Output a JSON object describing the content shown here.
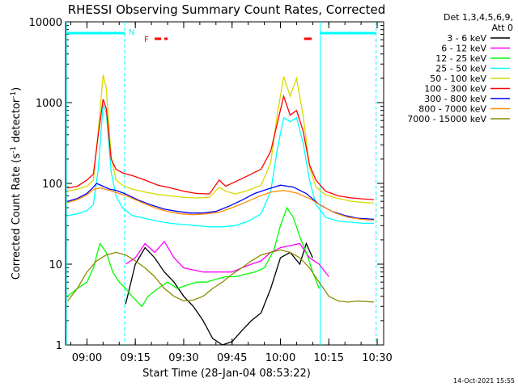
{
  "chart_data": {
    "type": "line",
    "title": "RHESSI Observing Summary Count Rates, Corrected",
    "xlabel": "Start Time (28-Jan-04 08:53:22)",
    "ylabel": "Corrected Count Rate (s⁻¹ detector⁻¹)",
    "ylabel_main": "Corrected Count Rate (s",
    "ylabel_sup1": "-1",
    "ylabel_mid": " detector",
    "ylabel_sup2": "-1",
    "ylabel_end": ")",
    "y_scale": "log",
    "ylim": [
      1,
      10000
    ],
    "xlim": [
      "08:53:22",
      "10:32:00"
    ],
    "x_ticks": [
      "09:00",
      "09:15",
      "09:30",
      "09:45",
      "10:00",
      "10:15",
      "10:30"
    ],
    "y_ticks": [
      "1",
      "10",
      "100",
      "1000",
      "10000"
    ],
    "legend_header": [
      "Det 1,3,4,5,6,9,",
      "Att 0"
    ],
    "legend_position": "right",
    "footer_date": "14-Oct-2021 15:55",
    "annotations": {
      "night_label": "N",
      "flare_label": "F",
      "night_intervals": [
        [
          "08:53:22",
          "09:11:40"
        ],
        [
          "10:12:20",
          "10:29:40"
        ]
      ],
      "flare_intervals": [
        [
          "09:21:00",
          "09:25:00"
        ],
        [
          "10:07:20",
          "10:09:40"
        ]
      ],
      "vertical_markers": [
        "09:11:40",
        "10:12:20",
        "10:29:40"
      ],
      "night_color": "#00ffff",
      "flare_color": "#ff0000"
    },
    "series": [
      {
        "name": "3 - 6 keV",
        "color": "#000000",
        "points": [
          [
            "09:12:00",
            3.2
          ],
          [
            "09:15:00",
            10
          ],
          [
            "09:18:00",
            16
          ],
          [
            "09:21:00",
            12
          ],
          [
            "09:24:00",
            8
          ],
          [
            "09:27:00",
            6
          ],
          [
            "09:30:00",
            4
          ],
          [
            "09:33:00",
            3
          ],
          [
            "09:36:00",
            2
          ],
          [
            "09:39:00",
            1.2
          ],
          [
            "09:42:00",
            1
          ],
          [
            "09:45:00",
            1.1
          ],
          [
            "09:48:00",
            1.5
          ],
          [
            "09:51:00",
            2
          ],
          [
            "09:54:00",
            2.5
          ],
          [
            "09:57:00",
            5
          ],
          [
            "10:00:00",
            12
          ],
          [
            "10:03:00",
            14
          ],
          [
            "10:06:00",
            10
          ],
          [
            "10:08:00",
            18
          ],
          [
            "10:10:00",
            12
          ]
        ]
      },
      {
        "name": "6 - 12 keV",
        "color": "#ff00ff",
        "points": [
          [
            "09:12:00",
            10
          ],
          [
            "09:15:00",
            12
          ],
          [
            "09:18:00",
            18
          ],
          [
            "09:21:00",
            14
          ],
          [
            "09:24:00",
            19
          ],
          [
            "09:27:00",
            12
          ],
          [
            "09:30:00",
            9
          ],
          [
            "09:33:00",
            8.5
          ],
          [
            "09:36:00",
            8
          ],
          [
            "09:39:00",
            8
          ],
          [
            "09:42:00",
            8
          ],
          [
            "09:45:00",
            8
          ],
          [
            "09:48:00",
            9
          ],
          [
            "09:51:00",
            10
          ],
          [
            "09:54:00",
            11
          ],
          [
            "09:57:00",
            14
          ],
          [
            "10:00:00",
            16
          ],
          [
            "10:03:00",
            17
          ],
          [
            "10:06:00",
            18
          ],
          [
            "10:09:00",
            12
          ],
          [
            "10:12:00",
            10
          ],
          [
            "10:15:00",
            7
          ]
        ]
      },
      {
        "name": "12 - 25 keV",
        "color": "#00ff00",
        "points": [
          [
            "08:54:00",
            4
          ],
          [
            "08:57:00",
            5
          ],
          [
            "09:00:00",
            6
          ],
          [
            "09:02:00",
            9
          ],
          [
            "09:04:00",
            18
          ],
          [
            "09:06:00",
            14
          ],
          [
            "09:08:00",
            8
          ],
          [
            "09:10:00",
            6
          ],
          [
            "09:12:00",
            5
          ],
          [
            "09:14:00",
            4
          ],
          [
            "09:17:00",
            3
          ],
          [
            "09:19:00",
            4
          ],
          [
            "09:22:00",
            5
          ],
          [
            "09:25:00",
            6
          ],
          [
            "09:28:00",
            5
          ],
          [
            "09:31:00",
            5.5
          ],
          [
            "09:34:00",
            6
          ],
          [
            "09:37:00",
            6
          ],
          [
            "09:40:00",
            6.5
          ],
          [
            "09:43:00",
            7
          ],
          [
            "09:46:00",
            7
          ],
          [
            "09:49:00",
            7.5
          ],
          [
            "09:52:00",
            8
          ],
          [
            "09:55:00",
            9
          ],
          [
            "09:58:00",
            15
          ],
          [
            "10:00:00",
            30
          ],
          [
            "10:02:00",
            50
          ],
          [
            "10:04:00",
            38
          ],
          [
            "10:06:00",
            22
          ],
          [
            "10:08:00",
            14
          ],
          [
            "10:10:00",
            8
          ],
          [
            "10:12:00",
            5
          ]
        ]
      },
      {
        "name": "25 - 50 keV",
        "color": "#00ffff",
        "points": [
          [
            "08:54:00",
            40
          ],
          [
            "08:57:00",
            42
          ],
          [
            "09:00:00",
            46
          ],
          [
            "09:02:00",
            55
          ],
          [
            "09:03:30",
            150
          ],
          [
            "09:05:00",
            950
          ],
          [
            "09:06:00",
            750
          ],
          [
            "09:07:30",
            140
          ],
          [
            "09:09:00",
            70
          ],
          [
            "09:11:00",
            50
          ],
          [
            "09:14:00",
            40
          ],
          [
            "09:18:00",
            37
          ],
          [
            "09:22:00",
            34
          ],
          [
            "09:26:00",
            32
          ],
          [
            "09:30:00",
            31
          ],
          [
            "09:34:00",
            30
          ],
          [
            "09:38:00",
            29
          ],
          [
            "09:42:00",
            29
          ],
          [
            "09:46:00",
            30
          ],
          [
            "09:50:00",
            34
          ],
          [
            "09:54:00",
            42
          ],
          [
            "09:57:00",
            80
          ],
          [
            "09:59:00",
            260
          ],
          [
            "10:01:00",
            650
          ],
          [
            "10:03:00",
            580
          ],
          [
            "10:05:00",
            650
          ],
          [
            "10:07:00",
            320
          ],
          [
            "10:09:00",
            110
          ],
          [
            "10:11:00",
            55
          ],
          [
            "10:14:00",
            38
          ],
          [
            "10:18:00",
            34
          ],
          [
            "10:22:00",
            33
          ],
          [
            "10:26:00",
            32
          ],
          [
            "10:29:00",
            32
          ]
        ]
      },
      {
        "name": "50 - 100 keV",
        "color": "#d9d900",
        "points": [
          [
            "08:54:00",
            80
          ],
          [
            "08:57:00",
            85
          ],
          [
            "09:00:00",
            92
          ],
          [
            "09:02:00",
            110
          ],
          [
            "09:03:30",
            450
          ],
          [
            "09:05:00",
            2200
          ],
          [
            "09:06:00",
            1500
          ],
          [
            "09:07:30",
            220
          ],
          [
            "09:09:00",
            110
          ],
          [
            "09:11:00",
            95
          ],
          [
            "09:14:00",
            85
          ],
          [
            "09:18:00",
            78
          ],
          [
            "09:22:00",
            73
          ],
          [
            "09:26:00",
            70
          ],
          [
            "09:30:00",
            67
          ],
          [
            "09:34:00",
            66
          ],
          [
            "09:38:00",
            67
          ],
          [
            "09:41:00",
            90
          ],
          [
            "09:43:00",
            80
          ],
          [
            "09:46:00",
            74
          ],
          [
            "09:50:00",
            82
          ],
          [
            "09:54:00",
            95
          ],
          [
            "09:57:00",
            180
          ],
          [
            "09:59:00",
            700
          ],
          [
            "10:01:00",
            2100
          ],
          [
            "10:03:00",
            1200
          ],
          [
            "10:05:00",
            2000
          ],
          [
            "10:07:00",
            700
          ],
          [
            "10:09:00",
            160
          ],
          [
            "10:11:00",
            90
          ],
          [
            "10:14:00",
            72
          ],
          [
            "10:18:00",
            65
          ],
          [
            "10:22:00",
            60
          ],
          [
            "10:26:00",
            58
          ],
          [
            "10:29:00",
            57
          ]
        ]
      },
      {
        "name": "100 - 300 keV",
        "color": "#ff0000",
        "points": [
          [
            "08:54:00",
            88
          ],
          [
            "08:57:00",
            92
          ],
          [
            "09:00:00",
            110
          ],
          [
            "09:02:00",
            130
          ],
          [
            "09:03:30",
            400
          ],
          [
            "09:05:00",
            1100
          ],
          [
            "09:06:00",
            850
          ],
          [
            "09:07:30",
            200
          ],
          [
            "09:09:00",
            150
          ],
          [
            "09:11:00",
            135
          ],
          [
            "09:14:00",
            125
          ],
          [
            "09:18:00",
            110
          ],
          [
            "09:22:00",
            95
          ],
          [
            "09:26:00",
            88
          ],
          [
            "09:30:00",
            80
          ],
          [
            "09:34:00",
            75
          ],
          [
            "09:38:00",
            74
          ],
          [
            "09:41:00",
            110
          ],
          [
            "09:43:00",
            92
          ],
          [
            "09:46:00",
            105
          ],
          [
            "09:50:00",
            125
          ],
          [
            "09:54:00",
            150
          ],
          [
            "09:57:00",
            250
          ],
          [
            "09:59:00",
            550
          ],
          [
            "10:01:00",
            1200
          ],
          [
            "10:03:00",
            700
          ],
          [
            "10:05:00",
            800
          ],
          [
            "10:07:00",
            450
          ],
          [
            "10:09:00",
            170
          ],
          [
            "10:11:00",
            110
          ],
          [
            "10:14:00",
            80
          ],
          [
            "10:18:00",
            70
          ],
          [
            "10:22:00",
            66
          ],
          [
            "10:26:00",
            64
          ],
          [
            "10:29:00",
            63
          ]
        ]
      },
      {
        "name": "300 - 800 keV",
        "color": "#0000ff",
        "points": [
          [
            "08:54:00",
            60
          ],
          [
            "08:57:00",
            65
          ],
          [
            "09:00:00",
            75
          ],
          [
            "09:02:00",
            90
          ],
          [
            "09:03:00",
            100
          ],
          [
            "09:05:00",
            92
          ],
          [
            "09:07:00",
            85
          ],
          [
            "09:09:00",
            82
          ],
          [
            "09:12:00",
            74
          ],
          [
            "09:16:00",
            62
          ],
          [
            "09:20:00",
            54
          ],
          [
            "09:24:00",
            48
          ],
          [
            "09:28:00",
            45
          ],
          [
            "09:32:00",
            43
          ],
          [
            "09:36:00",
            43
          ],
          [
            "09:40:00",
            45
          ],
          [
            "09:44:00",
            52
          ],
          [
            "09:48:00",
            62
          ],
          [
            "09:52:00",
            75
          ],
          [
            "09:56:00",
            85
          ],
          [
            "10:00:00",
            95
          ],
          [
            "10:04:00",
            90
          ],
          [
            "10:08:00",
            75
          ],
          [
            "10:12:00",
            55
          ],
          [
            "10:16:00",
            45
          ],
          [
            "10:20:00",
            40
          ],
          [
            "10:24:00",
            37
          ],
          [
            "10:29:00",
            36
          ]
        ]
      },
      {
        "name": "800 - 7000 keV",
        "color": "#ff8c00",
        "points": [
          [
            "08:54:00",
            58
          ],
          [
            "08:57:00",
            63
          ],
          [
            "09:00:00",
            72
          ],
          [
            "09:02:00",
            84
          ],
          [
            "09:04:00",
            88
          ],
          [
            "09:07:00",
            82
          ],
          [
            "09:10:00",
            75
          ],
          [
            "09:13:00",
            68
          ],
          [
            "09:17:00",
            58
          ],
          [
            "09:21:00",
            50
          ],
          [
            "09:25:00",
            45
          ],
          [
            "09:29:00",
            42
          ],
          [
            "09:33:00",
            41
          ],
          [
            "09:37:00",
            42
          ],
          [
            "09:41:00",
            44
          ],
          [
            "09:45:00",
            50
          ],
          [
            "09:49:00",
            58
          ],
          [
            "09:53:00",
            68
          ],
          [
            "09:57:00",
            78
          ],
          [
            "10:01:00",
            82
          ],
          [
            "10:05:00",
            76
          ],
          [
            "10:09:00",
            65
          ],
          [
            "10:13:00",
            52
          ],
          [
            "10:17:00",
            43
          ],
          [
            "10:21:00",
            38
          ],
          [
            "10:25:00",
            36
          ],
          [
            "10:29:00",
            35
          ]
        ]
      },
      {
        "name": "7000 - 15000 keV",
        "color": "#8b8b00",
        "points": [
          [
            "08:54:00",
            3.5
          ],
          [
            "08:57:00",
            5
          ],
          [
            "09:00:00",
            8
          ],
          [
            "09:03:00",
            11
          ],
          [
            "09:06:00",
            13
          ],
          [
            "09:09:00",
            14
          ],
          [
            "09:12:00",
            13
          ],
          [
            "09:15:00",
            11
          ],
          [
            "09:18:00",
            9
          ],
          [
            "09:21:00",
            7
          ],
          [
            "09:24:00",
            5
          ],
          [
            "09:27:00",
            4
          ],
          [
            "09:30:00",
            3.5
          ],
          [
            "09:33:00",
            3.6
          ],
          [
            "09:36:00",
            4
          ],
          [
            "09:39:00",
            5
          ],
          [
            "09:42:00",
            6
          ],
          [
            "09:45:00",
            7.5
          ],
          [
            "09:48:00",
            9
          ],
          [
            "09:51:00",
            11
          ],
          [
            "09:54:00",
            13
          ],
          [
            "09:57:00",
            14
          ],
          [
            "10:00:00",
            15
          ],
          [
            "10:03:00",
            14
          ],
          [
            "10:06:00",
            12
          ],
          [
            "10:09:00",
            9
          ],
          [
            "10:12:00",
            6
          ],
          [
            "10:15:00",
            4
          ],
          [
            "10:18:00",
            3.5
          ],
          [
            "10:21:00",
            3.4
          ],
          [
            "10:24:00",
            3.5
          ],
          [
            "10:29:00",
            3.4
          ]
        ]
      }
    ]
  }
}
